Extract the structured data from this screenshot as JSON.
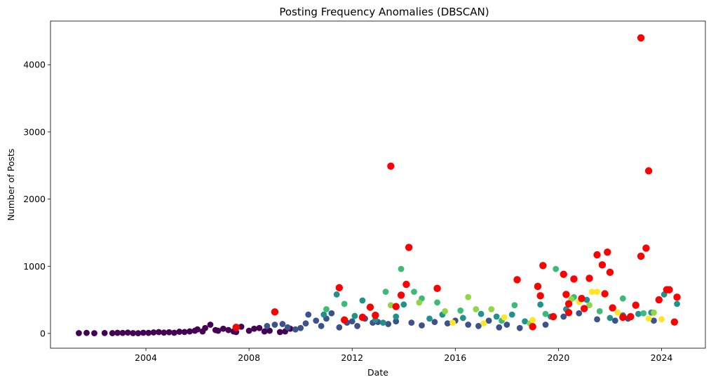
{
  "chart_data": {
    "type": "scatter",
    "title": "Posting Frequency Anomalies (DBSCAN)",
    "xlabel": "Date",
    "ylabel": "Number of Posts",
    "x_ticks": [
      "2004",
      "2008",
      "2012",
      "2016",
      "2020",
      "2024"
    ],
    "x_tick_values": [
      2004,
      2008,
      2012,
      2016,
      2020,
      2024
    ],
    "y_ticks": [
      "0",
      "1000",
      "2000",
      "3000",
      "4000"
    ],
    "y_tick_values": [
      0,
      1000,
      2000,
      3000,
      4000
    ],
    "xlim": [
      2000.3,
      2025.7
    ],
    "ylim": [
      -220,
      4650
    ],
    "grid": false,
    "legend": "none",
    "cluster_colors": [
      "#440154",
      "#3b528b",
      "#21918c",
      "#3cbb75",
      "#8fd744",
      "#fde725"
    ],
    "anomaly_color": "#ff0000",
    "series": [
      {
        "cluster": 0,
        "points": [
          [
            2001.4,
            5
          ],
          [
            2001.7,
            8
          ],
          [
            2002.0,
            3
          ],
          [
            2002.4,
            6
          ],
          [
            2002.7,
            4
          ],
          [
            2002.9,
            9
          ],
          [
            2003.1,
            7
          ],
          [
            2003.3,
            12
          ],
          [
            2003.5,
            5
          ],
          [
            2003.7,
            3
          ],
          [
            2003.9,
            10
          ],
          [
            2004.1,
            8
          ],
          [
            2004.3,
            15
          ],
          [
            2004.5,
            20
          ],
          [
            2004.7,
            12
          ],
          [
            2004.9,
            18
          ],
          [
            2005.1,
            10
          ],
          [
            2005.3,
            25
          ],
          [
            2005.5,
            22
          ],
          [
            2005.7,
            30
          ],
          [
            2005.9,
            40
          ],
          [
            2006.0,
            60
          ],
          [
            2006.2,
            30
          ],
          [
            2006.3,
            80
          ],
          [
            2006.5,
            130
          ],
          [
            2006.7,
            50
          ],
          [
            2006.8,
            40
          ],
          [
            2007.0,
            70
          ],
          [
            2007.2,
            50
          ],
          [
            2007.4,
            30
          ],
          [
            2007.5,
            20
          ],
          [
            2007.7,
            100
          ],
          [
            2008.0,
            40
          ],
          [
            2008.2,
            70
          ],
          [
            2008.4,
            80
          ],
          [
            2008.6,
            30
          ],
          [
            2008.8,
            40
          ],
          [
            2009.2,
            20
          ],
          [
            2009.4,
            30
          ],
          [
            2009.6,
            70
          ]
        ]
      },
      {
        "cluster": 1,
        "points": [
          [
            2008.7,
            110
          ],
          [
            2009.0,
            130
          ],
          [
            2009.3,
            140
          ],
          [
            2009.5,
            90
          ],
          [
            2009.8,
            60
          ],
          [
            2010.0,
            80
          ],
          [
            2010.2,
            150
          ],
          [
            2010.3,
            280
          ],
          [
            2010.6,
            190
          ],
          [
            2010.8,
            110
          ],
          [
            2011.0,
            220
          ],
          [
            2011.2,
            300
          ],
          [
            2011.5,
            90
          ],
          [
            2011.8,
            160
          ],
          [
            2012.0,
            180
          ],
          [
            2012.2,
            110
          ],
          [
            2012.5,
            220
          ],
          [
            2012.8,
            160
          ],
          [
            2013.0,
            170
          ],
          [
            2013.4,
            140
          ],
          [
            2013.7,
            180
          ],
          [
            2014.3,
            160
          ],
          [
            2014.7,
            120
          ],
          [
            2015.2,
            170
          ],
          [
            2015.7,
            150
          ],
          [
            2016.0,
            190
          ],
          [
            2016.5,
            130
          ],
          [
            2016.9,
            110
          ],
          [
            2017.3,
            190
          ],
          [
            2017.7,
            90
          ],
          [
            2018.0,
            130
          ],
          [
            2018.5,
            80
          ],
          [
            2019.0,
            100
          ],
          [
            2019.5,
            130
          ],
          [
            2020.2,
            250
          ],
          [
            2020.8,
            300
          ],
          [
            2021.5,
            210
          ],
          [
            2022.2,
            190
          ],
          [
            2022.7,
            220
          ],
          [
            2023.7,
            190
          ]
        ]
      },
      {
        "cluster": 2,
        "points": [
          [
            2010.9,
            280
          ],
          [
            2011.4,
            580
          ],
          [
            2012.1,
            260
          ],
          [
            2012.4,
            490
          ],
          [
            2012.9,
            200
          ],
          [
            2013.2,
            160
          ],
          [
            2013.7,
            250
          ],
          [
            2014.0,
            430
          ],
          [
            2015.0,
            220
          ],
          [
            2015.5,
            280
          ],
          [
            2016.3,
            230
          ],
          [
            2017.0,
            290
          ],
          [
            2017.6,
            250
          ],
          [
            2018.2,
            280
          ],
          [
            2018.7,
            180
          ],
          [
            2019.3,
            430
          ],
          [
            2019.7,
            250
          ],
          [
            2020.3,
            360
          ],
          [
            2021.1,
            500
          ],
          [
            2022.0,
            230
          ],
          [
            2022.5,
            270
          ],
          [
            2023.1,
            290
          ],
          [
            2023.6,
            310
          ],
          [
            2024.1,
            580
          ],
          [
            2024.6,
            440
          ]
        ]
      },
      {
        "cluster": 3,
        "points": [
          [
            2011.0,
            360
          ],
          [
            2011.7,
            440
          ],
          [
            2013.3,
            620
          ],
          [
            2013.9,
            960
          ],
          [
            2014.4,
            620
          ],
          [
            2014.7,
            520
          ],
          [
            2015.3,
            460
          ],
          [
            2016.2,
            340
          ],
          [
            2017.8,
            190
          ],
          [
            2018.3,
            420
          ],
          [
            2019.5,
            290
          ],
          [
            2019.9,
            960
          ],
          [
            2020.6,
            540
          ],
          [
            2021.6,
            330
          ],
          [
            2022.5,
            520
          ],
          [
            2023.3,
            300
          ]
        ]
      },
      {
        "cluster": 4,
        "points": [
          [
            2013.5,
            420
          ],
          [
            2014.6,
            460
          ],
          [
            2015.6,
            330
          ],
          [
            2016.5,
            540
          ],
          [
            2016.8,
            360
          ],
          [
            2017.4,
            360
          ],
          [
            2018.9,
            150
          ],
          [
            2020.5,
            510
          ],
          [
            2021.2,
            420
          ],
          [
            2023.7,
            310
          ]
        ]
      },
      {
        "cluster": 5,
        "points": [
          [
            2015.9,
            160
          ],
          [
            2017.1,
            150
          ],
          [
            2017.9,
            240
          ],
          [
            2019.0,
            200
          ],
          [
            2020.8,
            470
          ],
          [
            2021.3,
            620
          ],
          [
            2021.5,
            620
          ],
          [
            2022.3,
            310
          ],
          [
            2023.5,
            220
          ],
          [
            2024.0,
            210
          ]
        ]
      },
      {
        "cluster": -1,
        "name": "",
        "points": [
          [
            2007.5,
            90
          ],
          [
            2009.0,
            320
          ],
          [
            2011.5,
            680
          ],
          [
            2011.7,
            200
          ],
          [
            2012.4,
            240
          ],
          [
            2012.7,
            390
          ],
          [
            2012.9,
            270
          ],
          [
            2013.5,
            2490
          ],
          [
            2013.7,
            400
          ],
          [
            2013.9,
            570
          ],
          [
            2014.1,
            730
          ],
          [
            2014.2,
            1280
          ],
          [
            2015.3,
            670
          ],
          [
            2018.4,
            800
          ],
          [
            2019.0,
            100
          ],
          [
            2019.2,
            700
          ],
          [
            2019.3,
            560
          ],
          [
            2019.4,
            1010
          ],
          [
            2019.8,
            250
          ],
          [
            2020.2,
            880
          ],
          [
            2020.3,
            580
          ],
          [
            2020.4,
            440
          ],
          [
            2020.4,
            310
          ],
          [
            2020.6,
            810
          ],
          [
            2020.9,
            520
          ],
          [
            2021.0,
            370
          ],
          [
            2021.2,
            820
          ],
          [
            2021.5,
            1170
          ],
          [
            2021.7,
            1020
          ],
          [
            2021.8,
            590
          ],
          [
            2021.9,
            1210
          ],
          [
            2022.0,
            910
          ],
          [
            2022.1,
            380
          ],
          [
            2022.5,
            240
          ],
          [
            2022.8,
            250
          ],
          [
            2023.0,
            420
          ],
          [
            2023.2,
            4400
          ],
          [
            2023.2,
            1150
          ],
          [
            2023.4,
            1270
          ],
          [
            2023.5,
            2420
          ],
          [
            2023.9,
            500
          ],
          [
            2024.2,
            650
          ],
          [
            2024.3,
            650
          ],
          [
            2024.5,
            170
          ],
          [
            2024.6,
            540
          ]
        ]
      }
    ]
  }
}
